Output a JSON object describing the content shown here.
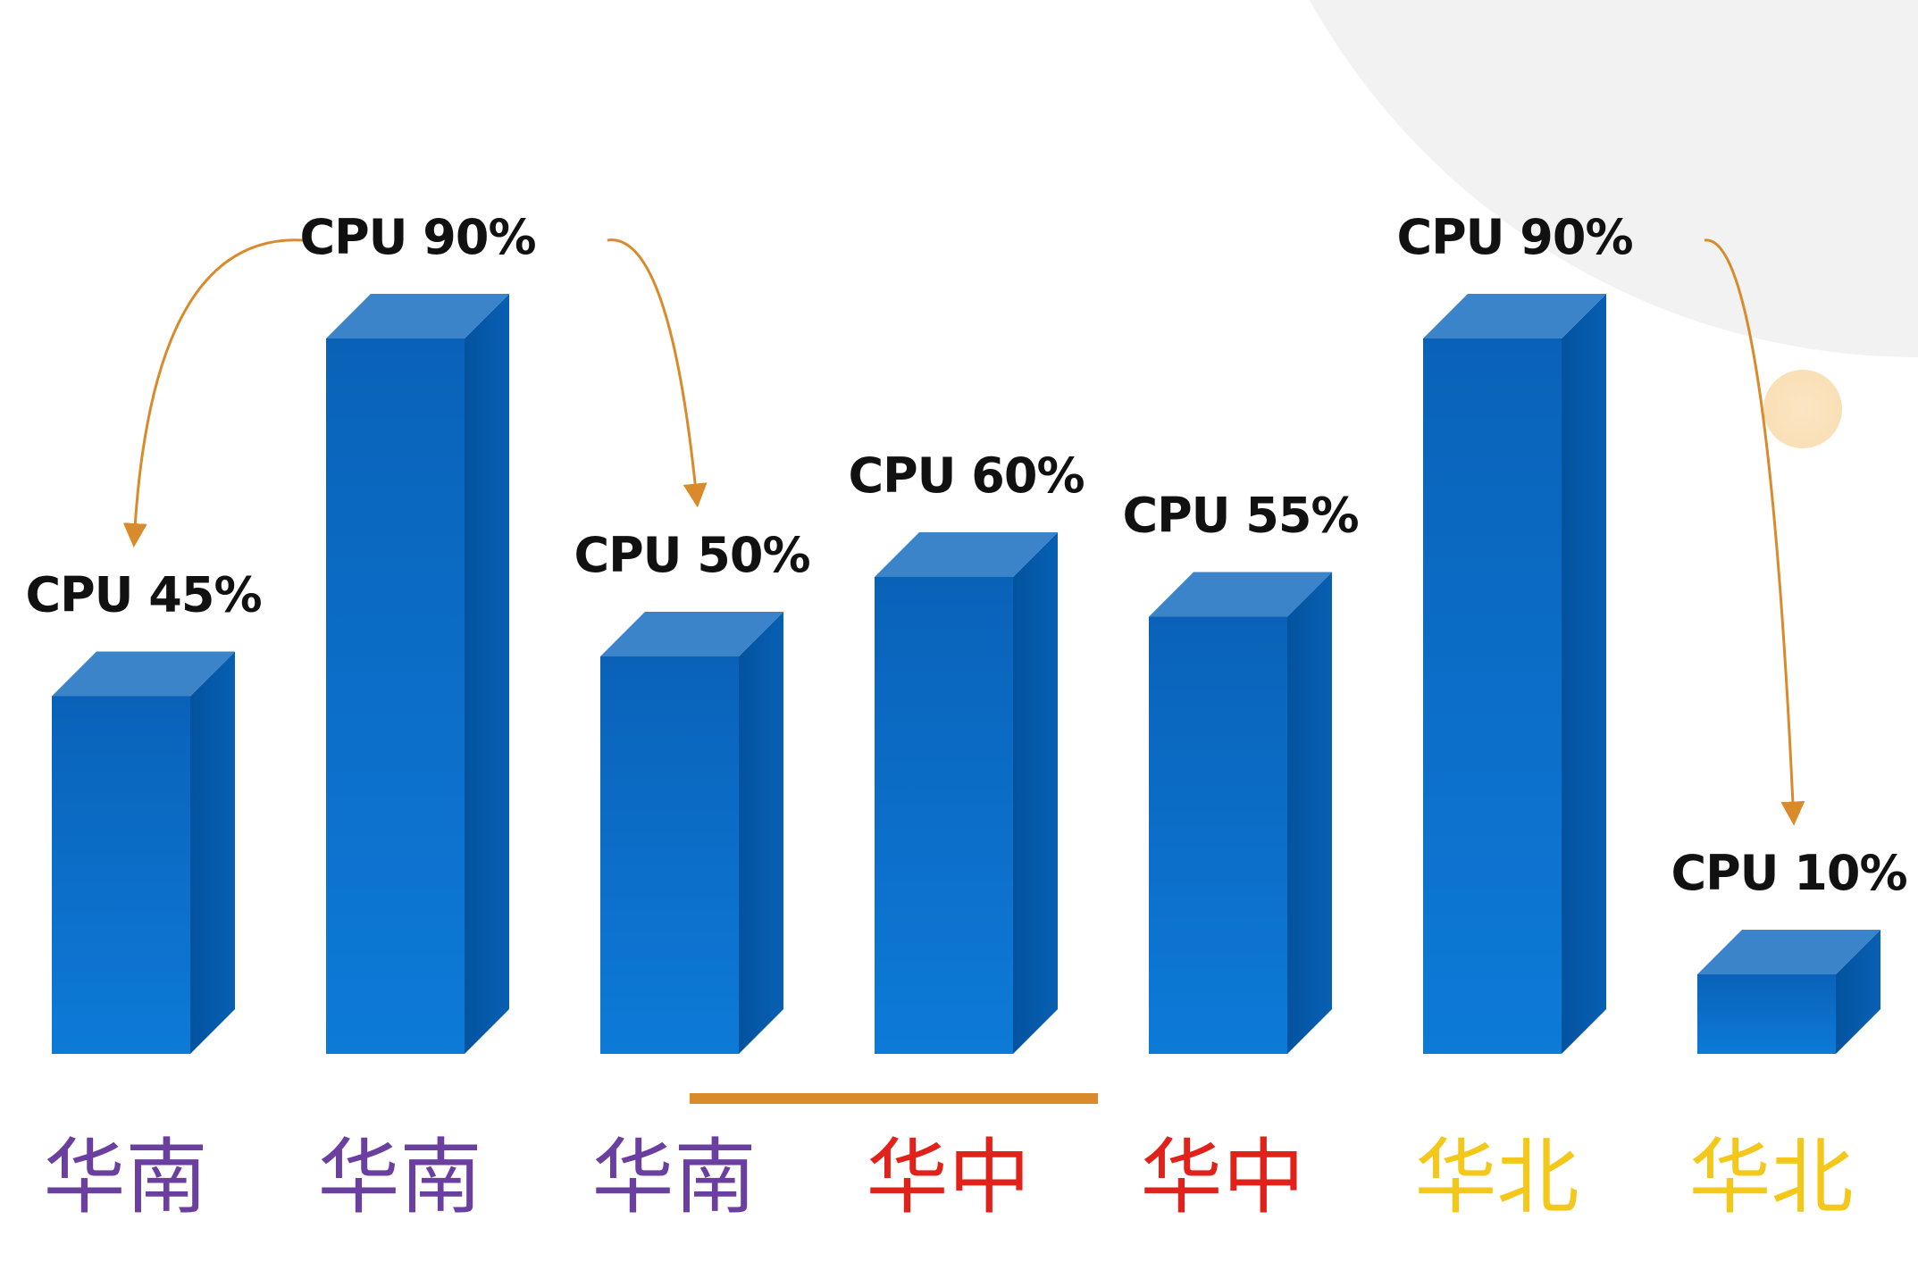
{
  "chart_data": {
    "type": "bar",
    "categories": [
      "华南",
      "华南",
      "华南",
      "华中",
      "华中",
      "华北",
      "华北"
    ],
    "values": [
      45,
      90,
      50,
      60,
      55,
      90,
      10
    ],
    "data_labels": [
      "CPU 45%",
      "CPU 90%",
      "CPU 50%",
      "CPU 60%",
      "CPU 55%",
      "CPU 90%",
      "CPU 10%"
    ],
    "ylim": [
      0,
      100
    ],
    "grid": false,
    "title": "",
    "xlabel": "",
    "ylabel": "",
    "group_colors": {
      "华南": "#6a3fa0",
      "华中": "#e0221a",
      "华北": "#f3c81a"
    },
    "bar_color": "#0a6ec8",
    "arrow_color": "#d98a2a",
    "annotations": [
      {
        "type": "arrow",
        "from_bar": 1,
        "to_bar": 0
      },
      {
        "type": "arrow",
        "from_bar": 1,
        "to_bar": 2
      },
      {
        "type": "arrow",
        "from_bar": 5,
        "to_bar": 6
      },
      {
        "type": "underline",
        "from_bar": 2,
        "to_bar": 3
      }
    ]
  }
}
